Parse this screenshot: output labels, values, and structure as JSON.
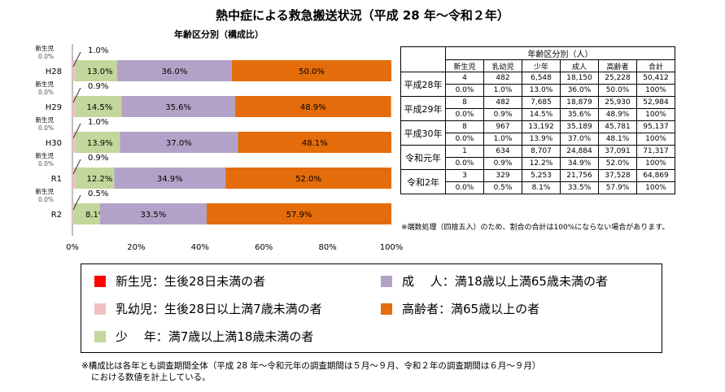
{
  "title": "熱中症による救急搬送状況（平成 28 年～令和２年）",
  "subtitle": "年齢区分別（構成比）",
  "chart_data": {
    "type": "bar",
    "orientation": "horizontal",
    "stacked": true,
    "categories": [
      "H28",
      "H29",
      "H30",
      "R1",
      "R2"
    ],
    "series": [
      {
        "name": "新生児",
        "values": [
          0.0,
          0.0,
          0.0,
          0.0,
          0.0
        ],
        "labels": [
          "0.0%",
          "0.0%",
          "0.0%",
          "0.0%",
          "0.0%"
        ],
        "color": "#ff0000"
      },
      {
        "name": "乳幼児",
        "values": [
          1.0,
          0.9,
          1.0,
          0.9,
          0.5
        ],
        "labels": [
          "1.0%",
          "0.9%",
          "1.0%",
          "0.9%",
          "0.5%"
        ],
        "color": "#f2c0c0"
      },
      {
        "name": "少年",
        "values": [
          13.0,
          14.5,
          13.9,
          12.2,
          8.1
        ],
        "labels": [
          "13.0%",
          "14.5%",
          "13.9%",
          "12.2%",
          "8.1%"
        ],
        "color": "#c3d69b"
      },
      {
        "name": "成人",
        "values": [
          36.0,
          35.6,
          37.0,
          34.9,
          33.5
        ],
        "labels": [
          "36.0%",
          "35.6%",
          "37.0%",
          "34.9%",
          "33.5%"
        ],
        "color": "#b3a2c7"
      },
      {
        "name": "高齢者",
        "values": [
          50.0,
          48.9,
          48.1,
          52.0,
          57.9
        ],
        "labels": [
          "50.0%",
          "48.9%",
          "48.1%",
          "52.0%",
          "57.9%"
        ],
        "color": "#e46c0a"
      }
    ],
    "callout_label": "新生児",
    "xlim": [
      0,
      100
    ],
    "xticks": [
      "0%",
      "20%",
      "40%",
      "60%",
      "80%",
      "100%"
    ],
    "grid": false
  },
  "table": {
    "group_header": "年齢区分別（人）",
    "columns": [
      "新生児",
      "乳幼児",
      "少年",
      "成人",
      "高齢者",
      "合計"
    ],
    "rows": [
      {
        "label": "平成28年",
        "counts": [
          "4",
          "482",
          "6,548",
          "18,150",
          "25,228",
          "50,412"
        ],
        "pcts": [
          "0.0%",
          "1.0%",
          "13.0%",
          "36.0%",
          "50.0%",
          "100%"
        ]
      },
      {
        "label": "平成29年",
        "counts": [
          "8",
          "482",
          "7,685",
          "18,879",
          "25,930",
          "52,984"
        ],
        "pcts": [
          "0.0%",
          "0.9%",
          "14.5%",
          "35.6%",
          "48.9%",
          "100%"
        ]
      },
      {
        "label": "平成30年",
        "counts": [
          "8",
          "967",
          "13,192",
          "35,189",
          "45,781",
          "95,137"
        ],
        "pcts": [
          "0.0%",
          "1.0%",
          "13.9%",
          "37.0%",
          "48.1%",
          "100%"
        ]
      },
      {
        "label": "令和元年",
        "counts": [
          "1",
          "634",
          "8,707",
          "24,884",
          "37,091",
          "71,317"
        ],
        "pcts": [
          "0.0%",
          "0.9%",
          "12.2%",
          "34.9%",
          "52.0%",
          "100%"
        ]
      },
      {
        "label": "令和2年",
        "counts": [
          "3",
          "329",
          "5,253",
          "21,756",
          "37,528",
          "64,869"
        ],
        "pcts": [
          "0.0%",
          "0.5%",
          "8.1%",
          "33.5%",
          "57.9%",
          "100%"
        ]
      }
    ],
    "note": "※端数処理（四捨五入）のため、割合の合計は100%にならない場合があります。"
  },
  "legend": {
    "items": [
      {
        "label": "新生児：生後28日未満の者",
        "color": "#ff0000"
      },
      {
        "label": "乳幼児：生後28日以上満7歳未満の者",
        "color": "#f2c0c0"
      },
      {
        "label": "少　 年：満7歳以上満18歳未満の者",
        "color": "#c3d69b"
      },
      {
        "label": "成　 人：満18歳以上満65歳未満の者",
        "color": "#b3a2c7"
      },
      {
        "label": "高齢者：満65歳以上の者",
        "color": "#e46c0a"
      }
    ]
  },
  "footnote": {
    "line1": "※構成比は各年とも調査期間全体（平成 28 年～令和元年の調査期間は５月～９月、令和２年の調査期間は６月～９月）",
    "line2": "における数値を計上している。"
  }
}
